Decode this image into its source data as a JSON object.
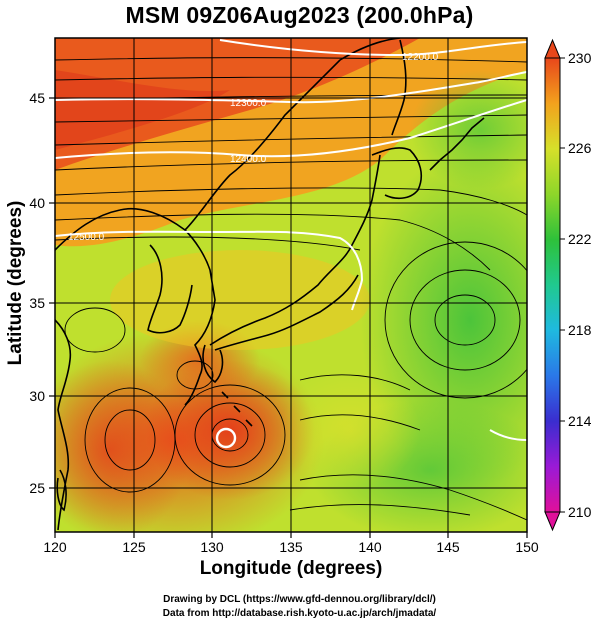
{
  "title": "MSM 09Z06Aug2023 (200.0hPa)",
  "xlabel": "Longitude (degrees)",
  "ylabel": "Latitude  (degrees)",
  "credits": {
    "line1": "Drawing by DCL (https://www.gfd-dennou.org/library/dcl/)",
    "line2": "Data from http://database.rish.kyoto-u.ac.jp/arch/jmadata/"
  },
  "axes": {
    "lon_range": [
      120,
      150
    ],
    "lat_range": [
      22.5,
      47.5
    ],
    "lon_ticks": [
      "120",
      "125",
      "130",
      "135",
      "140",
      "145",
      "150"
    ],
    "lat_ticks": [
      "25",
      "30",
      "35",
      "40",
      "45"
    ]
  },
  "colorbar": {
    "range": [
      210,
      230
    ],
    "tick_labels": [
      "230",
      "226",
      "222",
      "218",
      "214",
      "210"
    ],
    "colors": [
      "#e0109a",
      "#9a1ad6",
      "#3a2dcf",
      "#2a78e8",
      "#1fb9e0",
      "#20c98f",
      "#2ec13a",
      "#8ed62a",
      "#d6e02a",
      "#f2a21d",
      "#e8471b"
    ]
  },
  "contour_labels": [
    "12300.0",
    "12400.0",
    "12200.0",
    "12500.0"
  ],
  "colors": {
    "hot": "#e44a1c",
    "warm": "#f59a20",
    "mid": "#c6dc2c",
    "cool": "#56c63a",
    "contour": "#ffffff",
    "coast": "#000000"
  }
}
